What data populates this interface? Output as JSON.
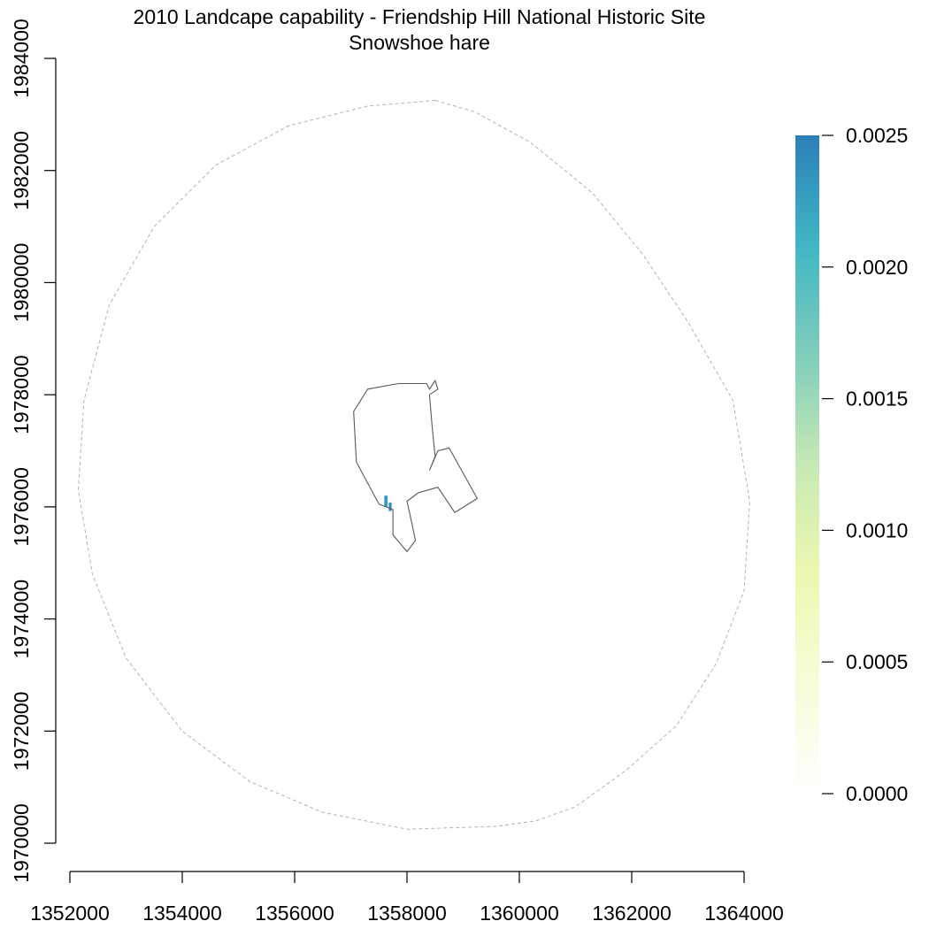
{
  "chart_data": {
    "type": "heatmap",
    "title": "2010 Landcape capability - Friendship Hill National Historic Site",
    "subtitle": "Snowshoe hare",
    "xlabel": "",
    "ylabel": "",
    "xlim": [
      1352000,
      1364000
    ],
    "ylim": [
      1970000,
      1984000
    ],
    "x_ticks": [
      1352000,
      1354000,
      1356000,
      1358000,
      1360000,
      1362000,
      1364000
    ],
    "y_ticks": [
      1970000,
      1972000,
      1974000,
      1976000,
      1978000,
      1980000,
      1982000,
      1984000
    ],
    "grid": false,
    "legend": {
      "placement": "right",
      "range": [
        0,
        0.0025
      ],
      "ticks": [
        "0.0000",
        "0.0005",
        "0.0010",
        "0.0015",
        "0.0020",
        "0.0025"
      ],
      "colors": [
        "#ffffff",
        "#f7fcd8",
        "#edf8b1",
        "#c7e9b4",
        "#7fcdbb",
        "#41b6c4",
        "#2c7fb8"
      ]
    },
    "buffer_ring": [
      [
        1358500,
        1983250
      ],
      [
        1359200,
        1983050
      ],
      [
        1360200,
        1982500
      ],
      [
        1361300,
        1981600
      ],
      [
        1362200,
        1980500
      ],
      [
        1363000,
        1979300
      ],
      [
        1363800,
        1977900
      ],
      [
        1364100,
        1976100
      ],
      [
        1364000,
        1974500
      ],
      [
        1363500,
        1973200
      ],
      [
        1362800,
        1972100
      ],
      [
        1361900,
        1971300
      ],
      [
        1361000,
        1970650
      ],
      [
        1360300,
        1970400
      ],
      [
        1359600,
        1970300
      ],
      [
        1358000,
        1970250
      ],
      [
        1356500,
        1970550
      ],
      [
        1355200,
        1971100
      ],
      [
        1354000,
        1972000
      ],
      [
        1353000,
        1973300
      ],
      [
        1352400,
        1974800
      ],
      [
        1352150,
        1976300
      ],
      [
        1352250,
        1977900
      ],
      [
        1352700,
        1979600
      ],
      [
        1353500,
        1981000
      ],
      [
        1354600,
        1982100
      ],
      [
        1355900,
        1982800
      ],
      [
        1357300,
        1983150
      ],
      [
        1358500,
        1983250
      ]
    ],
    "park_boundary": [
      [
        1357850,
        1978200
      ],
      [
        1358350,
        1978200
      ],
      [
        1358400,
        1978100
      ],
      [
        1358500,
        1978250
      ],
      [
        1358550,
        1978100
      ],
      [
        1358400,
        1978000
      ],
      [
        1358450,
        1977400
      ],
      [
        1358500,
        1976900
      ],
      [
        1358400,
        1976650
      ],
      [
        1358550,
        1977000
      ],
      [
        1358750,
        1977050
      ],
      [
        1359250,
        1976150
      ],
      [
        1358850,
        1975900
      ],
      [
        1358550,
        1976350
      ],
      [
        1358200,
        1976250
      ],
      [
        1358000,
        1976100
      ],
      [
        1358100,
        1975650
      ],
      [
        1358150,
        1975400
      ],
      [
        1358000,
        1975200
      ],
      [
        1357750,
        1975500
      ],
      [
        1357750,
        1975950
      ],
      [
        1357500,
        1976050
      ],
      [
        1357100,
        1976800
      ],
      [
        1357050,
        1977700
      ],
      [
        1357300,
        1978100
      ],
      [
        1357850,
        1978200
      ]
    ],
    "cells": [
      {
        "x": 1357625,
        "y": 1976100,
        "w": 60,
        "h": 200,
        "value": 0.0023
      },
      {
        "x": 1357700,
        "y": 1976000,
        "w": 50,
        "h": 150,
        "value": 0.0024
      }
    ]
  }
}
